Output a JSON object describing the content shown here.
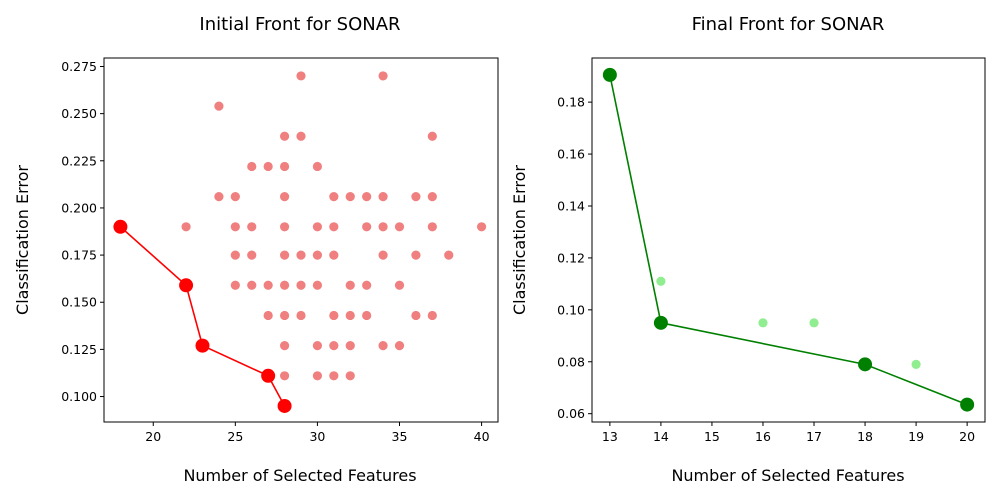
{
  "chart_data": [
    {
      "type": "scatter",
      "title": "Initial Front for SONAR",
      "xlabel": "Number of Selected Features",
      "ylabel": "Classification Error",
      "xlim": [
        17,
        41
      ],
      "ylim": [
        0.0865,
        0.2795
      ],
      "xticks": [
        "20",
        "25",
        "30",
        "35",
        "40"
      ],
      "yticks": [
        "0.100",
        "0.125",
        "0.150",
        "0.175",
        "0.200",
        "0.225",
        "0.250",
        "0.275"
      ],
      "grid": false,
      "colors": {
        "population": "#f08080",
        "front": "#ff0000"
      },
      "series": [
        {
          "role": "population",
          "points": [
            [
              29,
              0.27
            ],
            [
              34,
              0.27
            ],
            [
              24,
              0.254
            ],
            [
              28,
              0.238
            ],
            [
              29,
              0.238
            ],
            [
              37,
              0.238
            ],
            [
              26,
              0.222
            ],
            [
              27,
              0.222
            ],
            [
              28,
              0.222
            ],
            [
              30,
              0.222
            ],
            [
              24,
              0.206
            ],
            [
              25,
              0.206
            ],
            [
              28,
              0.206
            ],
            [
              31,
              0.206
            ],
            [
              32,
              0.206
            ],
            [
              33,
              0.206
            ],
            [
              34,
              0.206
            ],
            [
              36,
              0.206
            ],
            [
              37,
              0.206
            ],
            [
              22,
              0.19
            ],
            [
              25,
              0.19
            ],
            [
              26,
              0.19
            ],
            [
              28,
              0.19
            ],
            [
              30,
              0.19
            ],
            [
              31,
              0.19
            ],
            [
              33,
              0.19
            ],
            [
              34,
              0.19
            ],
            [
              35,
              0.19
            ],
            [
              37,
              0.19
            ],
            [
              40,
              0.19
            ],
            [
              25,
              0.175
            ],
            [
              26,
              0.175
            ],
            [
              28,
              0.175
            ],
            [
              29,
              0.175
            ],
            [
              30,
              0.175
            ],
            [
              31,
              0.175
            ],
            [
              34,
              0.175
            ],
            [
              36,
              0.175
            ],
            [
              38,
              0.175
            ],
            [
              25,
              0.159
            ],
            [
              26,
              0.159
            ],
            [
              27,
              0.159
            ],
            [
              28,
              0.159
            ],
            [
              29,
              0.159
            ],
            [
              30,
              0.159
            ],
            [
              32,
              0.159
            ],
            [
              33,
              0.159
            ],
            [
              35,
              0.159
            ],
            [
              27,
              0.143
            ],
            [
              28,
              0.143
            ],
            [
              29,
              0.143
            ],
            [
              31,
              0.143
            ],
            [
              32,
              0.143
            ],
            [
              33,
              0.143
            ],
            [
              36,
              0.143
            ],
            [
              37,
              0.143
            ],
            [
              28,
              0.127
            ],
            [
              30,
              0.127
            ],
            [
              31,
              0.127
            ],
            [
              32,
              0.127
            ],
            [
              34,
              0.127
            ],
            [
              35,
              0.127
            ],
            [
              28,
              0.111
            ],
            [
              30,
              0.111
            ],
            [
              31,
              0.111
            ],
            [
              32,
              0.111
            ]
          ]
        },
        {
          "role": "front",
          "points": [
            [
              18,
              0.19
            ],
            [
              22,
              0.159
            ],
            [
              23,
              0.127
            ],
            [
              27,
              0.111
            ],
            [
              28,
              0.095
            ]
          ]
        }
      ]
    },
    {
      "type": "scatter",
      "title": "Final Front for SONAR",
      "xlabel": "Number of Selected Features",
      "ylabel": "Classification Error",
      "xlim": [
        12.65,
        20.35
      ],
      "ylim": [
        0.0568,
        0.197
      ],
      "xticks": [
        "13",
        "14",
        "15",
        "16",
        "17",
        "18",
        "19",
        "20"
      ],
      "yticks": [
        "0.06",
        "0.08",
        "0.10",
        "0.12",
        "0.14",
        "0.16",
        "0.18"
      ],
      "grid": false,
      "colors": {
        "population": "#90ee90",
        "front": "#008000"
      },
      "series": [
        {
          "role": "population",
          "points": [
            [
              14,
              0.111
            ],
            [
              16,
              0.095
            ],
            [
              17,
              0.095
            ],
            [
              19,
              0.079
            ],
            [
              18,
              0.079
            ]
          ]
        },
        {
          "role": "front",
          "points": [
            [
              13,
              0.1905
            ],
            [
              14,
              0.095
            ],
            [
              18,
              0.079
            ],
            [
              20,
              0.0635
            ]
          ]
        }
      ]
    }
  ]
}
